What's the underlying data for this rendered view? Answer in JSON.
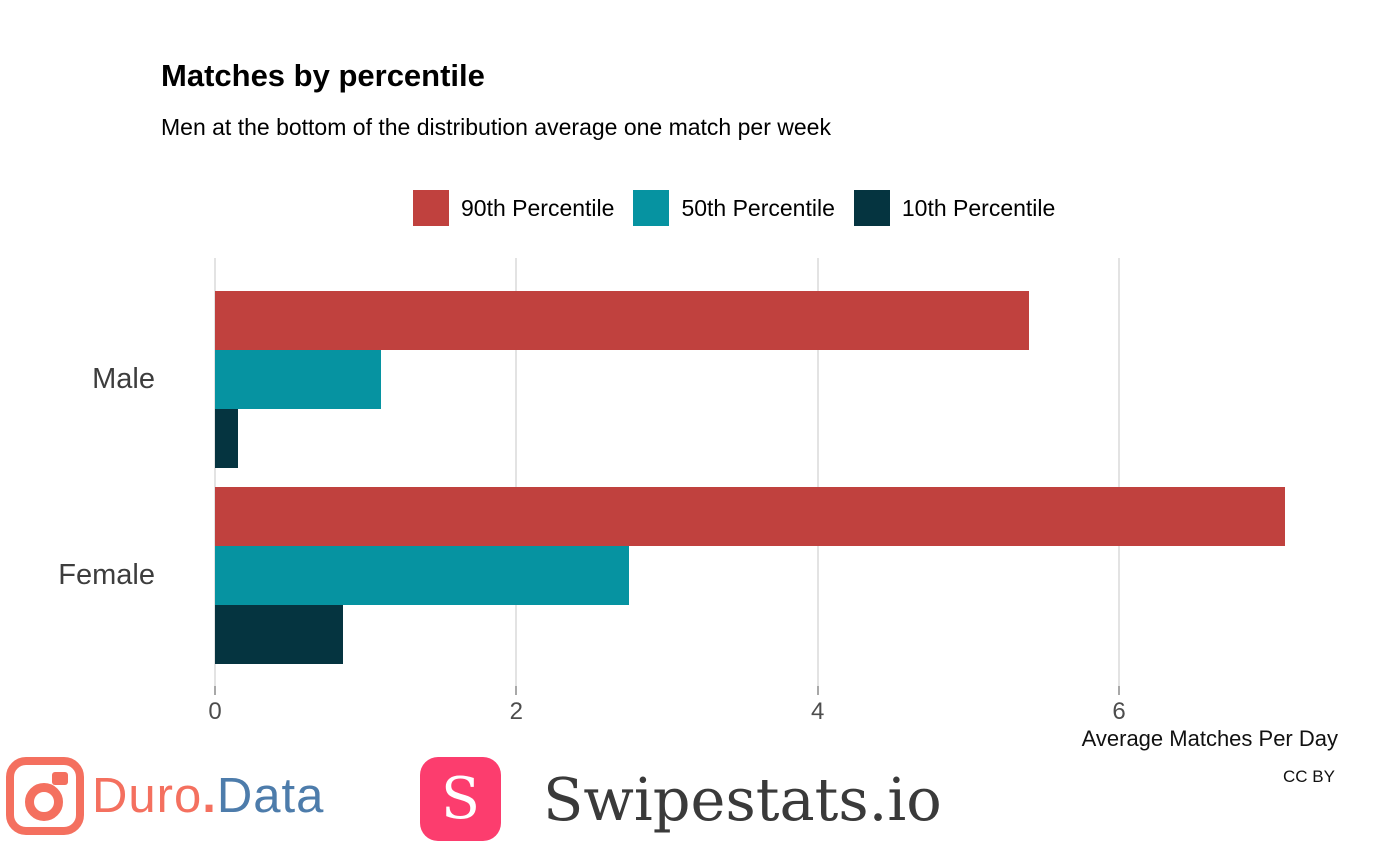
{
  "header": {
    "title": "Matches by percentile",
    "subtitle": "Men at the bottom of the distribution average one match per week"
  },
  "chart_data": {
    "type": "bar",
    "orientation": "horizontal",
    "title": "Matches by percentile",
    "subtitle": "Men at the bottom of the distribution average one match per week",
    "categories": [
      "Male",
      "Female"
    ],
    "series": [
      {
        "name": "90th Percentile",
        "color": "#c0413e",
        "values": [
          5.4,
          7.1
        ]
      },
      {
        "name": "50th Percentile",
        "color": "#0693a1",
        "values": [
          1.1,
          2.75
        ]
      },
      {
        "name": "10th Percentile",
        "color": "#053440",
        "values": [
          0.15,
          0.85
        ]
      }
    ],
    "xlabel": "Average Matches Per Day",
    "ylabel": "",
    "xticks": [
      0,
      2,
      4,
      6
    ],
    "xlim": [
      0,
      7.25
    ],
    "grid": "vertical-only",
    "legend_position": "top"
  },
  "footer": {
    "duro_part1": "Duro",
    "duro_dot": ".",
    "duro_part2": "Data",
    "swipestats_letter": "S",
    "swipestats_text": "Swipestats.io",
    "license": "CC BY"
  },
  "colors": {
    "p90": "#c0413e",
    "p50": "#0693a1",
    "p10": "#053440",
    "gridline": "#e3e3e3",
    "duro_coral": "#f4705f",
    "duro_blue": "#4d7cab",
    "swipestats_pink": "#fc3d6e"
  }
}
